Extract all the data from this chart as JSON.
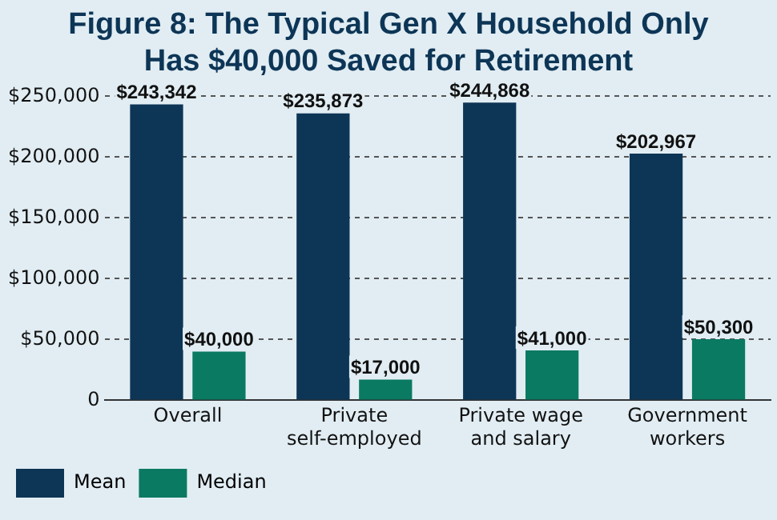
{
  "chart_data": {
    "type": "bar",
    "title": "Figure 8: The Typical Gen X Household Only Has $40,000 Saved for Retirement",
    "categories": [
      "Overall",
      "Private self-employed",
      "Private wage and salary",
      "Government workers"
    ],
    "series": [
      {
        "name": "Mean",
        "color": "#0d3556",
        "values": [
          243342,
          235873,
          244868,
          202967
        ],
        "value_labels": [
          "$243,342",
          "$235,873",
          "$244,868",
          "$202,967"
        ]
      },
      {
        "name": "Median",
        "color": "#0b7a62",
        "values": [
          40000,
          17000,
          41000,
          50300
        ],
        "value_labels": [
          "$40,000",
          "$17,000",
          "$41,000",
          "$50,300"
        ]
      }
    ],
    "ylim": [
      0,
      250000
    ],
    "yticks": [
      0,
      {
        "value": 50000,
        "label": "$50,000"
      },
      {
        "value": 100000,
        "label": "$100,000"
      },
      {
        "value": 150000,
        "label": "$150,000"
      },
      {
        "value": 200000,
        "label": "$200,000"
      },
      {
        "value": 250000,
        "label": "$250,000"
      }
    ],
    "grid": "y",
    "legend": "bottom"
  }
}
